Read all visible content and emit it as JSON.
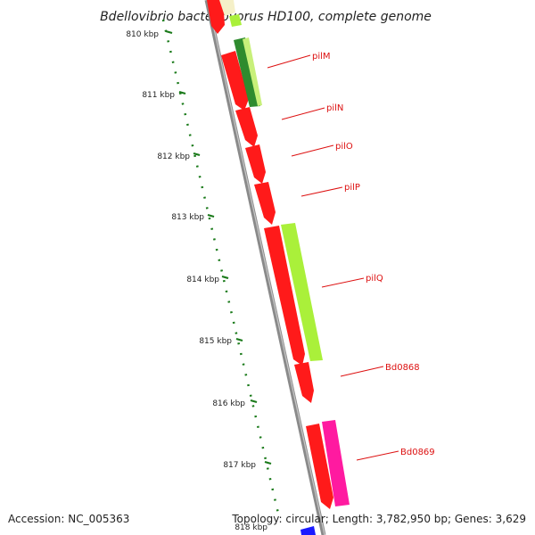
{
  "title": "Bdellovibrio bacteriovorus HD100, complete genome",
  "accession": "Accession: NC_005363",
  "summary": "Topology: circular; Length: 3,782,950 bp; Genes: 3,629",
  "colors": {
    "label_red": "#dd1111",
    "tick_green": "#1a7a1a",
    "backbone": "#8a8a8a",
    "red_gene": "#ff1a1a",
    "lime_gene": "#aaf03a",
    "green_gene": "#2e8b2e",
    "magenta_gene": "#ff1aa0",
    "blue_gene": "#1a1aff"
  },
  "kbp_labels": [
    "810 kbp",
    "811 kbp",
    "812 kbp",
    "813 kbp",
    "814 kbp",
    "815 kbp",
    "816 kbp",
    "817 kbp",
    "818 kbp"
  ],
  "gene_labels": [
    "pilM",
    "pilN",
    "pilO",
    "pilP",
    "pilQ",
    "Bd0868",
    "Bd0869"
  ]
}
